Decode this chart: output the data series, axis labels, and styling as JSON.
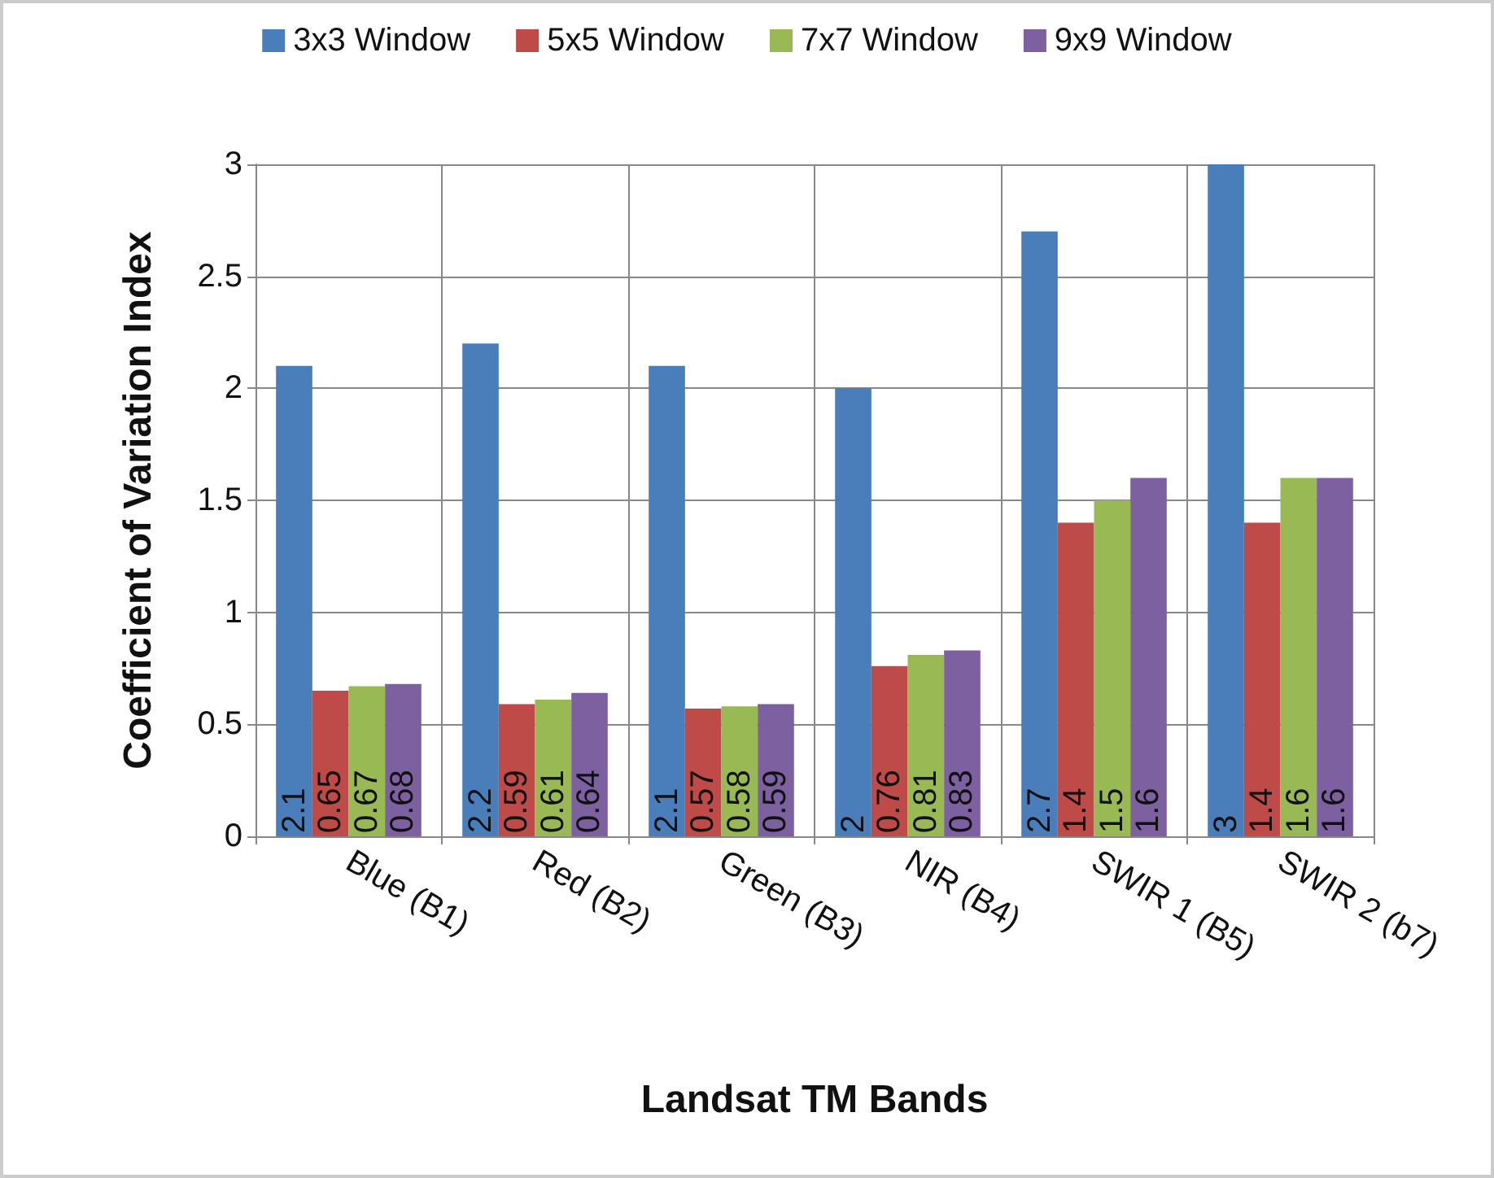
{
  "chart_data": {
    "type": "bar",
    "xlabel": "Landsat TM Bands",
    "ylabel": "Coefficient of Variation Index",
    "categories": [
      "Blue (B1)",
      "Red (B2)",
      "Green (B3)",
      "NIR (B4)",
      "SWIR 1 (B5)",
      "SWIR 2 (b7)"
    ],
    "series": [
      {
        "name": "3x3 Window",
        "color": "#4a7ebb",
        "values": [
          2.1,
          2.2,
          2.1,
          2,
          2.7,
          3
        ]
      },
      {
        "name": "5x5 Window",
        "color": "#be4b48",
        "values": [
          0.65,
          0.59,
          0.57,
          0.76,
          1.4,
          1.4
        ]
      },
      {
        "name": "7x7 Window",
        "color": "#98b954",
        "values": [
          0.67,
          0.61,
          0.58,
          0.81,
          1.5,
          1.6
        ]
      },
      {
        "name": "9x9 Window",
        "color": "#7d60a0",
        "values": [
          0.68,
          0.64,
          0.59,
          0.83,
          1.6,
          1.6
        ]
      }
    ],
    "ylim": [
      0,
      3
    ],
    "yticks": [
      0,
      0.5,
      1,
      1.5,
      2,
      2.5,
      3
    ],
    "grid": true,
    "legend": "top",
    "data_labels": true
  }
}
